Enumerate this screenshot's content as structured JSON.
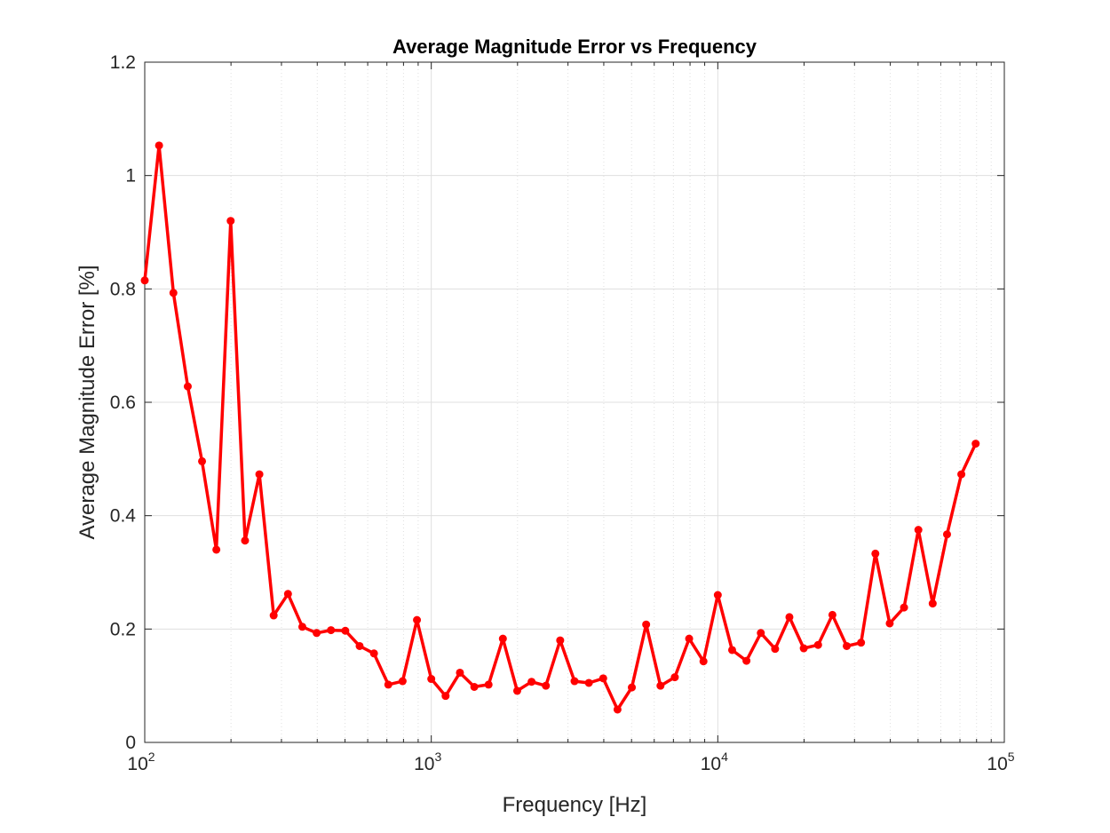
{
  "chart_data": {
    "type": "line",
    "title": "Average Magnitude Error vs Frequency",
    "xlabel": "Frequency [Hz]",
    "ylabel": "Average Magnitude Error [%]",
    "xscale": "log",
    "xlim": [
      100,
      100000
    ],
    "ylim": [
      0,
      1.2
    ],
    "grid": true,
    "x_ticks": [
      {
        "base": "10",
        "exp": "2"
      },
      {
        "base": "10",
        "exp": "3"
      },
      {
        "base": "10",
        "exp": "4"
      },
      {
        "base": "10",
        "exp": "5"
      }
    ],
    "y_ticks": [
      "0",
      "0.2",
      "0.4",
      "0.6",
      "0.8",
      "1",
      "1.2"
    ],
    "series": [
      {
        "color": "#ff0000",
        "x": [
          100,
          112.2,
          125.9,
          141.3,
          158.5,
          177.8,
          199.5,
          223.9,
          251.2,
          281.8,
          316.2,
          354.8,
          398.1,
          446.7,
          501.2,
          562.3,
          631.0,
          707.9,
          794.3,
          891.3,
          1000,
          1122,
          1259,
          1413,
          1585,
          1778,
          1995,
          2239,
          2512,
          2818,
          3162,
          3548,
          3981,
          4467,
          5012,
          5623,
          6310,
          7079,
          7943,
          8913,
          10000,
          11220,
          12590,
          14130,
          15850,
          17780,
          19950,
          22390,
          25120,
          28180,
          31620,
          35480,
          39810,
          44670,
          50120,
          56230,
          63100,
          70790,
          79430
        ],
        "y": [
          0.815,
          1.053,
          0.793,
          0.628,
          0.496,
          0.34,
          0.92,
          0.356,
          0.473,
          0.224,
          0.262,
          0.204,
          0.193,
          0.198,
          0.197,
          0.17,
          0.157,
          0.102,
          0.108,
          0.216,
          0.112,
          0.082,
          0.123,
          0.098,
          0.102,
          0.183,
          0.091,
          0.107,
          0.1,
          0.18,
          0.108,
          0.105,
          0.113,
          0.058,
          0.097,
          0.208,
          0.1,
          0.115,
          0.183,
          0.143,
          0.26,
          0.163,
          0.144,
          0.193,
          0.165,
          0.221,
          0.166,
          0.172,
          0.225,
          0.17,
          0.176,
          0.333,
          0.21,
          0.238,
          0.375,
          0.245,
          0.367,
          0.473,
          0.527
        ]
      }
    ]
  },
  "colors": {
    "axis": "#262626",
    "grid": "#dfdfdf",
    "series": "#ff0000"
  }
}
